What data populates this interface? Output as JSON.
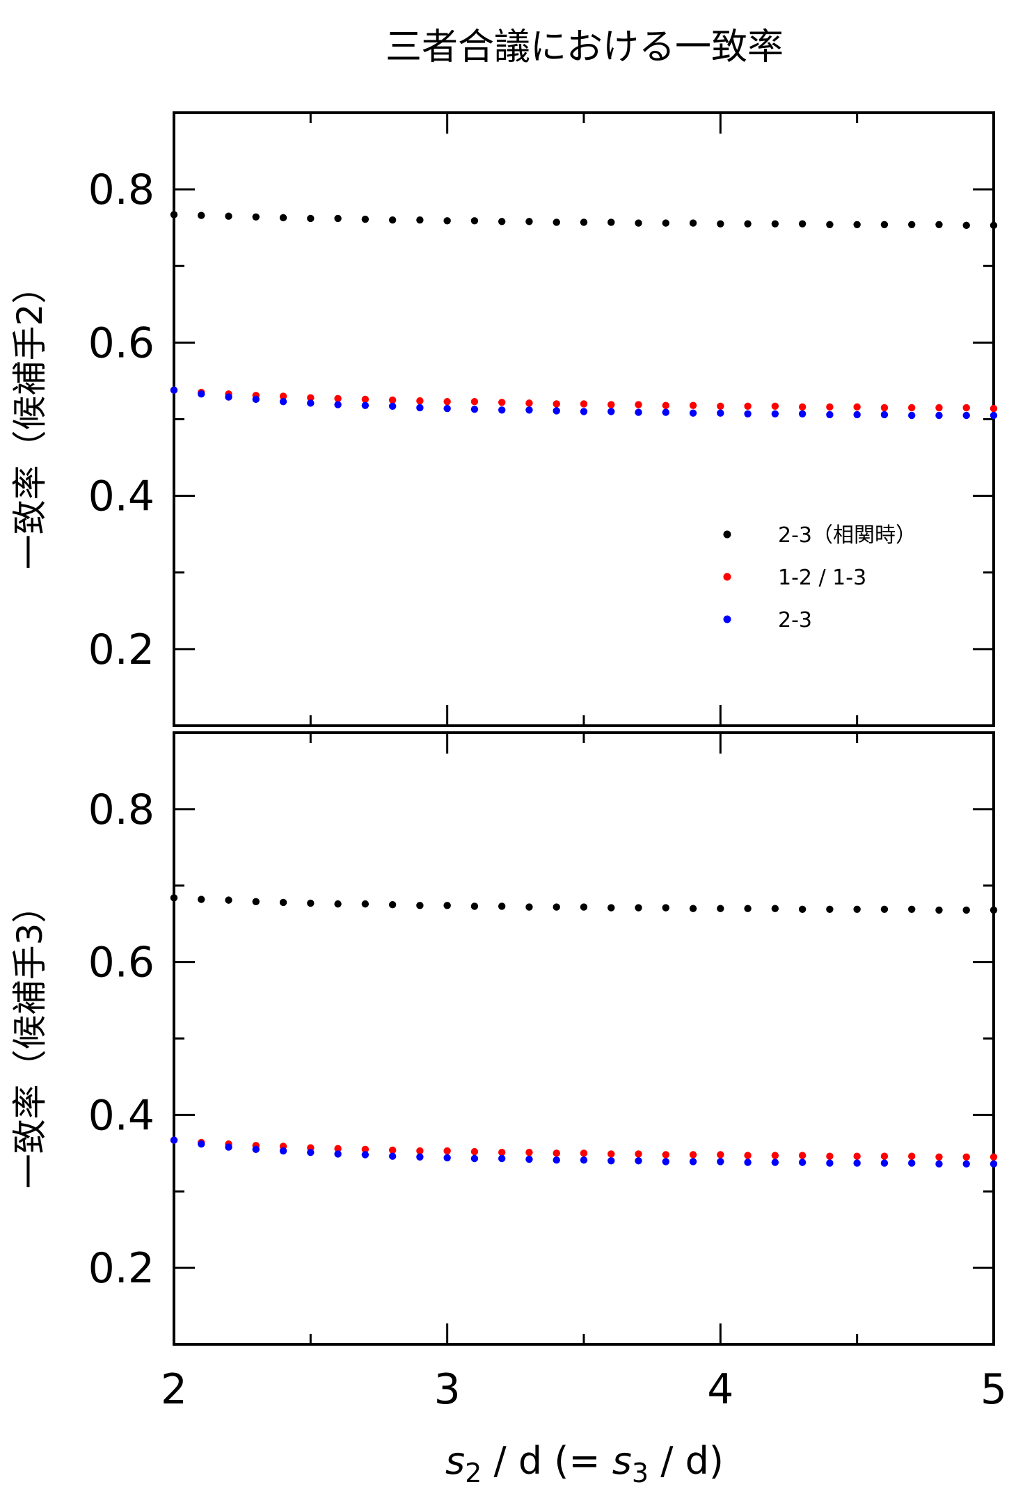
{
  "title": "三者合議における一致率",
  "x_label": {
    "s2": "s",
    "s2_sub": "2",
    "mid": " / d  (= ",
    "s3": "s",
    "s3_sub": "3",
    "end": " / d)"
  },
  "legend": [
    "2-3（相関時）",
    "1-2 / 1-3",
    "2-3"
  ],
  "chart_data": [
    {
      "type": "scatter",
      "ylabel": "一致率（候補手2）",
      "xlim": [
        2,
        5
      ],
      "ylim": [
        0.1,
        0.9
      ],
      "x_ticks": [
        2,
        3,
        4,
        5
      ],
      "y_ticks": [
        0.2,
        0.4,
        0.6,
        0.8
      ],
      "y_tick_labels": [
        "0.2",
        "0.4",
        "0.6",
        "0.8"
      ],
      "x": [
        2.0,
        2.1,
        2.2,
        2.3,
        2.4,
        2.5,
        2.6,
        2.7,
        2.8,
        2.9,
        3.0,
        3.1,
        3.2,
        3.3,
        3.4,
        3.5,
        3.6,
        3.7,
        3.8,
        3.9,
        4.0,
        4.1,
        4.2,
        4.3,
        4.4,
        4.5,
        4.6,
        4.7,
        4.8,
        4.9,
        5.0
      ],
      "series": [
        {
          "name": "2-3（相関時）",
          "color": "#000000",
          "values": [
            0.767,
            0.766,
            0.765,
            0.764,
            0.763,
            0.762,
            0.762,
            0.761,
            0.76,
            0.76,
            0.759,
            0.759,
            0.758,
            0.758,
            0.757,
            0.757,
            0.757,
            0.756,
            0.756,
            0.756,
            0.755,
            0.755,
            0.755,
            0.755,
            0.754,
            0.754,
            0.754,
            0.754,
            0.754,
            0.753,
            0.753
          ]
        },
        {
          "name": "1-2 / 1-3",
          "color": "#ff0000",
          "values": [
            0.538,
            0.535,
            0.533,
            0.531,
            0.53,
            0.528,
            0.527,
            0.526,
            0.525,
            0.524,
            0.523,
            0.523,
            0.522,
            0.521,
            0.52,
            0.52,
            0.519,
            0.519,
            0.518,
            0.518,
            0.517,
            0.517,
            0.517,
            0.516,
            0.516,
            0.516,
            0.515,
            0.515,
            0.515,
            0.515,
            0.514
          ]
        },
        {
          "name": "2-3",
          "color": "#0000ff",
          "values": [
            0.538,
            0.533,
            0.529,
            0.526,
            0.523,
            0.521,
            0.519,
            0.518,
            0.517,
            0.515,
            0.514,
            0.513,
            0.512,
            0.512,
            0.511,
            0.51,
            0.51,
            0.509,
            0.509,
            0.508,
            0.508,
            0.507,
            0.507,
            0.507,
            0.506,
            0.506,
            0.506,
            0.505,
            0.505,
            0.505,
            0.505
          ]
        }
      ]
    },
    {
      "type": "scatter",
      "ylabel": "一致率（候補手3）",
      "xlim": [
        2,
        5
      ],
      "ylim": [
        0.1,
        0.9
      ],
      "x_ticks": [
        2,
        3,
        4,
        5
      ],
      "x_tick_labels": [
        "2",
        "3",
        "4",
        "5"
      ],
      "y_ticks": [
        0.2,
        0.4,
        0.6,
        0.8
      ],
      "y_tick_labels": [
        "0.2",
        "0.4",
        "0.6",
        "0.8"
      ],
      "x": [
        2.0,
        2.1,
        2.2,
        2.3,
        2.4,
        2.5,
        2.6,
        2.7,
        2.8,
        2.9,
        3.0,
        3.1,
        3.2,
        3.3,
        3.4,
        3.5,
        3.6,
        3.7,
        3.8,
        3.9,
        4.0,
        4.1,
        4.2,
        4.3,
        4.4,
        4.5,
        4.6,
        4.7,
        4.8,
        4.9,
        5.0
      ],
      "series": [
        {
          "name": "2-3（相関時）",
          "color": "#000000",
          "values": [
            0.684,
            0.682,
            0.681,
            0.679,
            0.678,
            0.677,
            0.676,
            0.676,
            0.675,
            0.674,
            0.674,
            0.673,
            0.673,
            0.672,
            0.672,
            0.672,
            0.671,
            0.671,
            0.671,
            0.67,
            0.67,
            0.67,
            0.67,
            0.669,
            0.669,
            0.669,
            0.669,
            0.669,
            0.668,
            0.668,
            0.668
          ]
        },
        {
          "name": "1-2 / 1-3",
          "color": "#ff0000",
          "values": [
            0.367,
            0.364,
            0.362,
            0.36,
            0.359,
            0.357,
            0.356,
            0.355,
            0.354,
            0.353,
            0.353,
            0.352,
            0.351,
            0.351,
            0.35,
            0.35,
            0.349,
            0.349,
            0.348,
            0.348,
            0.348,
            0.347,
            0.347,
            0.347,
            0.346,
            0.346,
            0.346,
            0.346,
            0.345,
            0.345,
            0.345
          ]
        },
        {
          "name": "2-3",
          "color": "#0000ff",
          "values": [
            0.367,
            0.362,
            0.358,
            0.355,
            0.353,
            0.351,
            0.349,
            0.348,
            0.346,
            0.345,
            0.344,
            0.343,
            0.343,
            0.342,
            0.341,
            0.341,
            0.34,
            0.34,
            0.339,
            0.339,
            0.339,
            0.338,
            0.338,
            0.338,
            0.337,
            0.337,
            0.337,
            0.337,
            0.336,
            0.336,
            0.336
          ]
        }
      ]
    }
  ]
}
